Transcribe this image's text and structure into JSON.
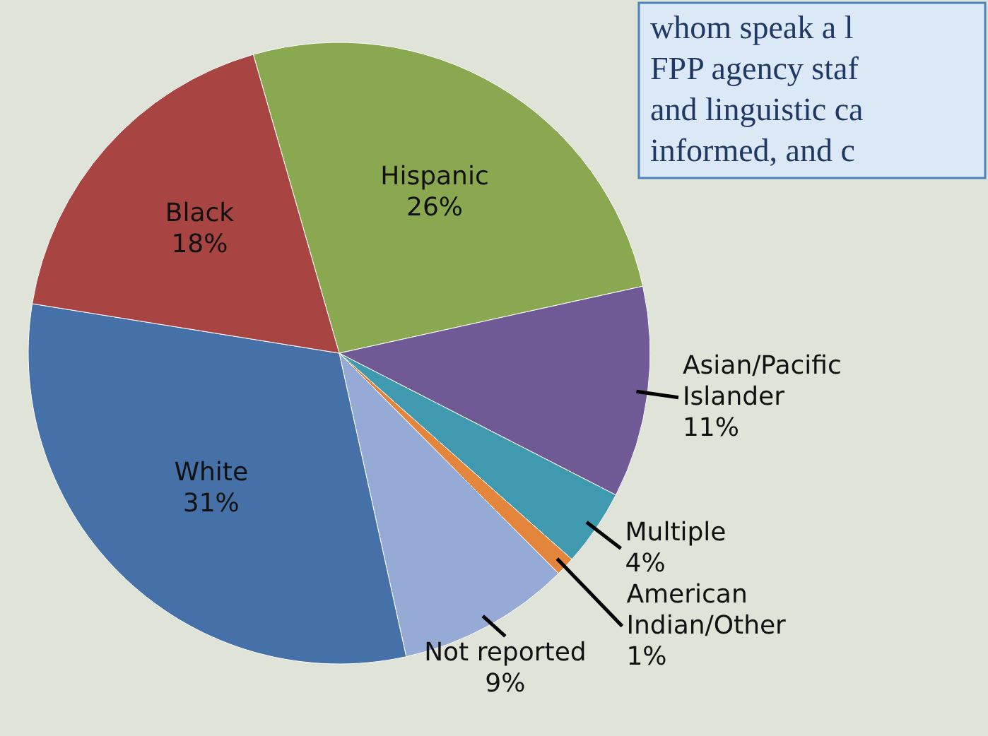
{
  "chart_data": {
    "type": "pie",
    "categories": [
      "Hispanic",
      "Asian/Pacific Islander",
      "Multiple",
      "American Indian/Other",
      "Not reported",
      "White",
      "Black"
    ],
    "values": [
      26,
      11,
      4,
      1,
      9,
      31,
      18
    ],
    "colors": [
      "#8aa84f",
      "#6f5a96",
      "#3f9ab0",
      "#e3853a",
      "#95aad4",
      "#4571a8",
      "#a84442"
    ],
    "value_labels": [
      "26%",
      "11%",
      "4%",
      "1%",
      "9%",
      "31%",
      "18%"
    ],
    "annotations": [
      "whom speak a l",
      "FPP agency staf",
      "and linguistic ca",
      "informed, and c"
    ]
  }
}
